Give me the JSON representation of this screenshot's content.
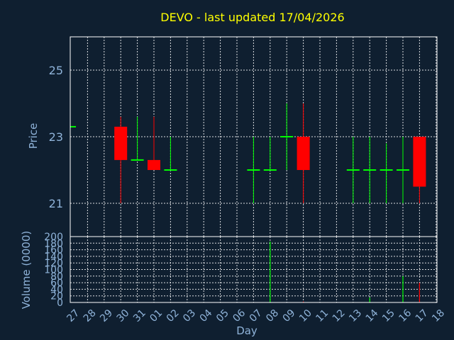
{
  "title": "DEVO - last updated 17/04/2026",
  "colors": {
    "background": "#0f1f30",
    "up": "#00ff00",
    "down": "#ff0000",
    "title": "#ffff00",
    "labels": "#8fb3d9",
    "grid": "#ffffff"
  },
  "chart_data": [
    {
      "type": "candlestick",
      "ylabel": "Price",
      "ylim": [
        20,
        26
      ],
      "yticks": [
        21,
        23,
        25
      ],
      "grid": true,
      "x_ticks": [
        "27",
        "28",
        "29",
        "30",
        "31",
        "01",
        "02",
        "03",
        "04",
        "05",
        "06",
        "07",
        "08",
        "09",
        "10",
        "11",
        "12",
        "13",
        "14",
        "15",
        "16",
        "17",
        "18"
      ],
      "candles": [
        {
          "day": "27",
          "open": 23.3,
          "close": 23.3,
          "high": 23.3,
          "low": 23.3,
          "partial": true
        },
        {
          "day": "30",
          "open": 23.3,
          "close": 22.3,
          "high": 23.6,
          "low": 21.0
        },
        {
          "day": "31",
          "open": 22.3,
          "close": 22.3,
          "high": 23.6,
          "low": 22.3
        },
        {
          "day": "01",
          "open": 22.3,
          "close": 22.0,
          "high": 23.6,
          "low": 22.0
        },
        {
          "day": "02",
          "open": 22.0,
          "close": 22.0,
          "high": 23.0,
          "low": 22.0
        },
        {
          "day": "07",
          "open": 22.0,
          "close": 22.0,
          "high": 23.0,
          "low": 21.0
        },
        {
          "day": "08",
          "open": 22.0,
          "close": 22.0,
          "high": 23.0,
          "low": 22.0
        },
        {
          "day": "09",
          "open": 23.0,
          "close": 23.0,
          "high": 24.0,
          "low": 22.0
        },
        {
          "day": "10",
          "open": 23.0,
          "close": 22.0,
          "high": 24.0,
          "low": 21.0
        },
        {
          "day": "13",
          "open": 22.0,
          "close": 22.0,
          "high": 23.0,
          "low": 21.0
        },
        {
          "day": "14",
          "open": 22.0,
          "close": 22.0,
          "high": 23.0,
          "low": 21.0
        },
        {
          "day": "15",
          "open": 22.0,
          "close": 22.0,
          "high": 22.8,
          "low": 21.0
        },
        {
          "day": "16",
          "open": 22.0,
          "close": 22.0,
          "high": 23.0,
          "low": 21.0
        },
        {
          "day": "17",
          "open": 23.0,
          "close": 21.5,
          "high": 23.0,
          "low": 21.0
        }
      ]
    },
    {
      "type": "bar",
      "xlabel": "Day",
      "ylabel": "Volume (0000)",
      "ylim": [
        0,
        200
      ],
      "yticks": [
        0,
        20,
        40,
        60,
        80,
        100,
        120,
        140,
        160,
        180,
        200
      ],
      "grid": true,
      "bars": [
        {
          "day": "08",
          "value": 185,
          "color": "#00ff00"
        },
        {
          "day": "10",
          "value": 3,
          "color": "#ff0000"
        },
        {
          "day": "14",
          "value": 15,
          "color": "#00ff00"
        },
        {
          "day": "16",
          "value": 80,
          "color": "#00ff00"
        },
        {
          "day": "17",
          "value": 60,
          "color": "#ff0000"
        }
      ]
    }
  ]
}
